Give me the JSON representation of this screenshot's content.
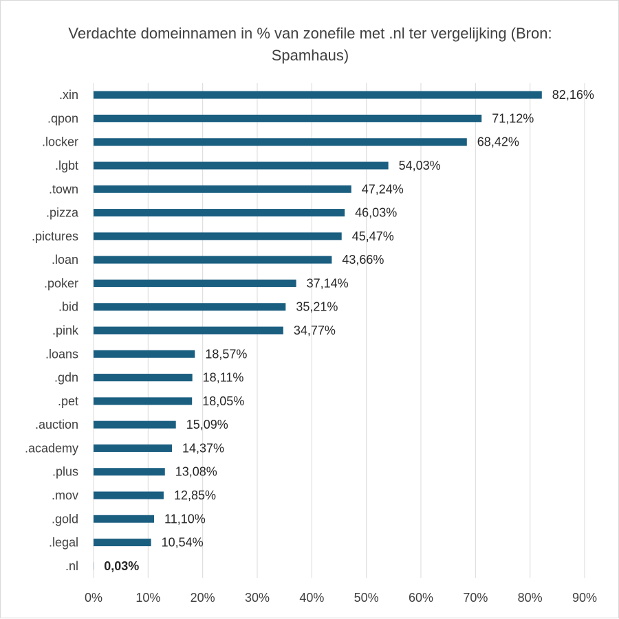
{
  "chart_data": {
    "type": "bar",
    "orientation": "horizontal",
    "title": "Verdachte domeinnamen in % van zonefile met .nl ter vergelijking (Bron: Spamhaus)",
    "xlabel": "",
    "ylabel": "",
    "categories": [
      ".xin",
      ".qpon",
      ".locker",
      ".lgbt",
      ".town",
      ".pizza",
      ".pictures",
      ".loan",
      ".poker",
      ".bid",
      ".pink",
      ".loans",
      ".gdn",
      ".pet",
      ".auction",
      ".academy",
      ".plus",
      ".mov",
      ".gold",
      ".legal",
      ".nl"
    ],
    "values": [
      82.16,
      71.12,
      68.42,
      54.03,
      47.24,
      46.03,
      45.47,
      43.66,
      37.14,
      35.21,
      34.77,
      18.57,
      18.11,
      18.05,
      15.09,
      14.37,
      13.08,
      12.85,
      11.1,
      10.54,
      0.03
    ],
    "value_labels": [
      "82,16%",
      "71,12%",
      "68,42%",
      "54,03%",
      "47,24%",
      "46,03%",
      "45,47%",
      "43,66%",
      "37,14%",
      "35,21%",
      "34,77%",
      "18,57%",
      "18,11%",
      "18,05%",
      "15,09%",
      "14,37%",
      "13,08%",
      "12,85%",
      "11,10%",
      "10,54%",
      "0,03%"
    ],
    "highlight_label": ".nl",
    "xlim": [
      0,
      90
    ],
    "xticks": [
      "0%",
      "10%",
      "20%",
      "30%",
      "40%",
      "50%",
      "60%",
      "70%",
      "80%",
      "90%"
    ],
    "grid": true,
    "legend": "none",
    "bar_color": "#1a5e80"
  }
}
